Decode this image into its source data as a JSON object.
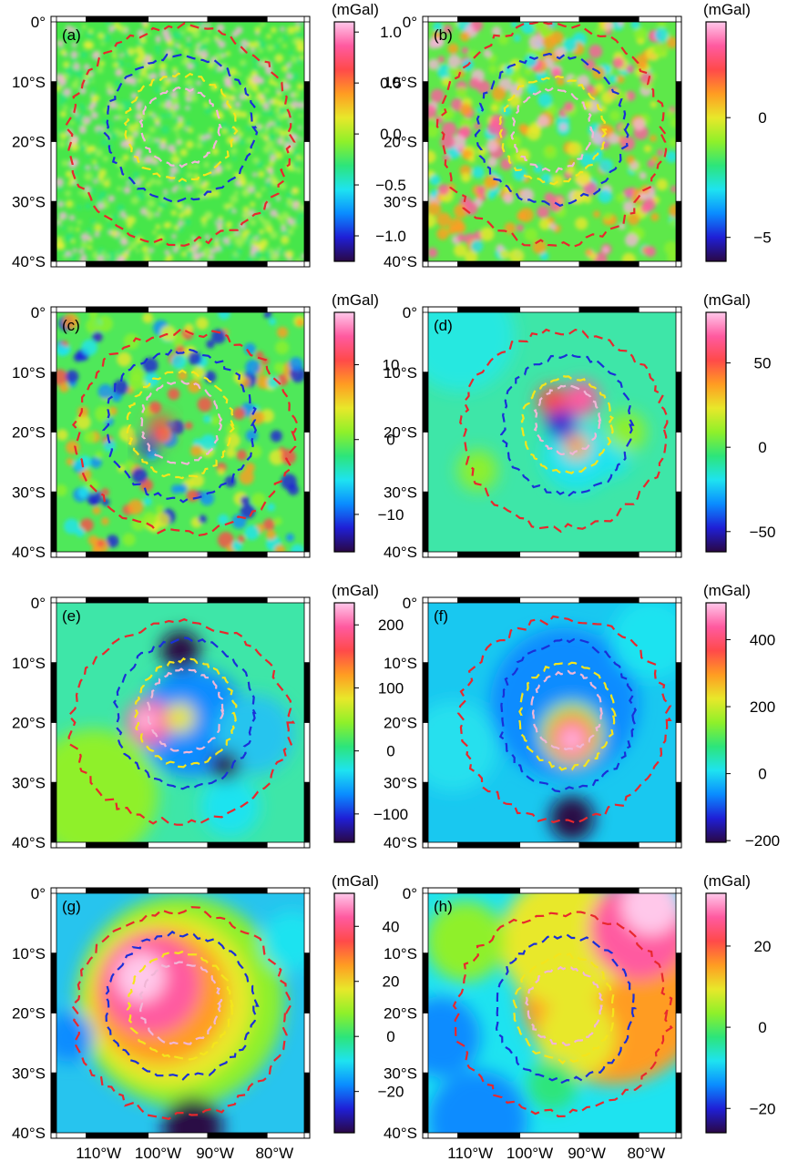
{
  "figure": {
    "lat_ticks": [
      "0°",
      "10°S",
      "20°S",
      "30°S",
      "40°S"
    ],
    "lon_ticks": [
      "110°W",
      "100°W",
      "90°W",
      "80°W"
    ],
    "colormap": [
      "#2a0845",
      "#1f1fd6",
      "#0a8cff",
      "#1ee3f0",
      "#2de57a",
      "#8ff02a",
      "#e8e82a",
      "#ff9c22",
      "#ff4a4a",
      "#ff5aa0",
      "#ffc8ea"
    ],
    "contour_colors": {
      "outer": "#e8282d",
      "middle": "#1a2fd8",
      "inner": "#f4e51c",
      "center": "#f0b6d6"
    }
  },
  "chart_data": [
    {
      "type": "heatmap",
      "panel": "(a)",
      "unit": "(mGal)",
      "colorbar": {
        "min": -1.25,
        "max": 1.1,
        "ticks": [
          1.0,
          0.5,
          0.0,
          -0.5,
          -1.0
        ],
        "tick_labels": [
          "1.0",
          "0.5",
          "0.0",
          "−0.5",
          "−1.0"
        ]
      }
    },
    {
      "type": "heatmap",
      "panel": "(b)",
      "unit": "(mGal)",
      "colorbar": {
        "min": -6,
        "max": 4,
        "ticks": [
          0,
          -5
        ],
        "tick_labels": [
          "0",
          "−5"
        ]
      }
    },
    {
      "type": "heatmap",
      "panel": "(c)",
      "unit": "(mGal)",
      "colorbar": {
        "min": -15,
        "max": 17,
        "ticks": [
          10,
          0,
          -10
        ],
        "tick_labels": [
          "10",
          "0",
          "−10"
        ]
      }
    },
    {
      "type": "heatmap",
      "panel": "(d)",
      "unit": "(mGal)",
      "colorbar": {
        "min": -62,
        "max": 80,
        "ticks": [
          50,
          0,
          -50
        ],
        "tick_labels": [
          "50",
          "0",
          "−50"
        ]
      }
    },
    {
      "type": "heatmap",
      "panel": "(e)",
      "unit": "(mGal)",
      "colorbar": {
        "min": -145,
        "max": 235,
        "ticks": [
          200,
          100,
          0,
          -100
        ],
        "tick_labels": [
          "200",
          "100",
          "0",
          "−100"
        ]
      }
    },
    {
      "type": "heatmap",
      "panel": "(f)",
      "unit": "(mGal)",
      "colorbar": {
        "min": -205,
        "max": 510,
        "ticks": [
          400,
          200,
          0,
          -200
        ],
        "tick_labels": [
          "400",
          "200",
          "0",
          "−200"
        ]
      }
    },
    {
      "type": "heatmap",
      "panel": "(g)",
      "unit": "(mGal)",
      "colorbar": {
        "min": -35,
        "max": 52,
        "ticks": [
          40,
          20,
          0,
          -20
        ],
        "tick_labels": [
          "40",
          "20",
          "0",
          "−20"
        ]
      }
    },
    {
      "type": "heatmap",
      "panel": "(h)",
      "unit": "(mGal)",
      "colorbar": {
        "min": -26,
        "max": 33,
        "ticks": [
          20,
          0,
          -20
        ],
        "tick_labels": [
          "20",
          "0",
          "−20"
        ]
      }
    }
  ]
}
